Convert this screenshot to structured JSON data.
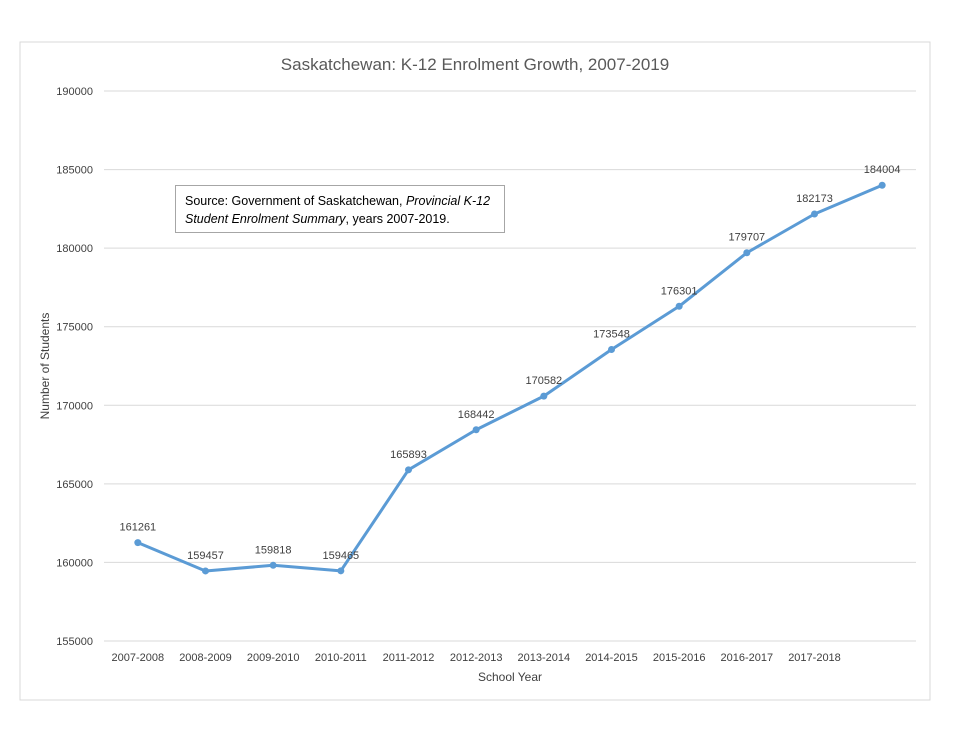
{
  "chart_data": {
    "type": "line",
    "title": "Saskatchewan: K-12 Enrolment Growth, 2007-2019",
    "xlabel": "School Year",
    "ylabel": "Number of Students",
    "categories": [
      "2007-2008",
      "2008-2009",
      "2009-2010",
      "2010-2011",
      "2011-2012",
      "2012-2013",
      "2013-2014",
      "2014-2015",
      "2015-2016",
      "2016-2017",
      "2017-2018",
      ""
    ],
    "series": [
      {
        "values": [
          161261,
          159457,
          159818,
          159465,
          165893,
          168442,
          170582,
          173548,
          176301,
          179707,
          182173,
          184004
        ]
      }
    ],
    "ylim": [
      155000,
      190000
    ],
    "yticks": [
      155000,
      160000,
      165000,
      170000,
      175000,
      180000,
      185000,
      190000
    ],
    "grid": true,
    "legend": "none",
    "colors": {
      "line": "#5b9bd5",
      "grid": "#d9d9d9",
      "text": "#404040",
      "title": "#595959"
    }
  },
  "source_note": {
    "prefix": "Source: Government of Saskatchewan, ",
    "italic": "Provincial K-12 Student Enrolment Summary",
    "suffix": ", years 2007-2019."
  }
}
